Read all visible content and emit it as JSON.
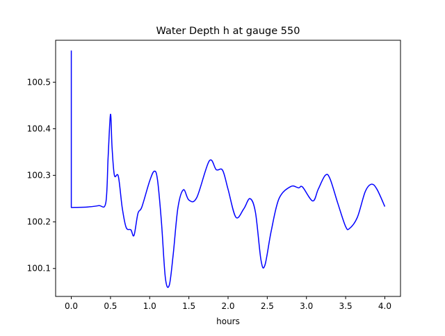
{
  "chart_data": {
    "type": "line",
    "title": "Water Depth h at gauge 550",
    "xlabel": "hours",
    "ylabel": "",
    "xlim": [
      -0.2,
      4.2
    ],
    "ylim": [
      100.04,
      100.59
    ],
    "xticks": [
      0.0,
      0.5,
      1.0,
      1.5,
      2.0,
      2.5,
      3.0,
      3.5,
      4.0
    ],
    "xtick_labels": [
      "0.0",
      "0.5",
      "1.0",
      "1.5",
      "2.0",
      "2.5",
      "3.0",
      "3.5",
      "4.0"
    ],
    "yticks": [
      100.1,
      100.2,
      100.3,
      100.4,
      100.5
    ],
    "ytick_labels": [
      "100.1",
      "100.2",
      "100.3",
      "100.4",
      "100.5"
    ],
    "grid": false,
    "line_color": "#0000ff",
    "series": [
      {
        "x": [
          0.0,
          0.0,
          0.0,
          0.2,
          0.35,
          0.44,
          0.47,
          0.5,
          0.52,
          0.55,
          0.6,
          0.65,
          0.7,
          0.76,
          0.8,
          0.85,
          0.9,
          1.0,
          1.06,
          1.1,
          1.15,
          1.2,
          1.25,
          1.3,
          1.36,
          1.43,
          1.5,
          1.6,
          1.76,
          1.85,
          1.93,
          2.0,
          2.1,
          2.2,
          2.28,
          2.35,
          2.42,
          2.47,
          2.55,
          2.65,
          2.8,
          2.9,
          2.95,
          3.08,
          3.15,
          3.24,
          3.3,
          3.4,
          3.5,
          3.55,
          3.65,
          3.75,
          3.83,
          3.9,
          4.0
        ],
        "y": [
          100.568,
          100.568,
          100.231,
          100.232,
          100.235,
          100.241,
          100.34,
          100.431,
          100.36,
          100.3,
          100.298,
          100.23,
          100.188,
          100.183,
          100.171,
          100.218,
          100.232,
          100.288,
          100.309,
          100.29,
          100.2,
          100.08,
          100.064,
          100.13,
          100.23,
          100.269,
          100.247,
          100.252,
          100.331,
          100.312,
          100.311,
          100.27,
          100.21,
          100.228,
          100.25,
          100.22,
          100.118,
          100.107,
          100.18,
          100.25,
          100.276,
          100.273,
          100.275,
          100.245,
          100.27,
          100.3,
          100.293,
          100.24,
          100.19,
          100.186,
          100.21,
          100.265,
          100.281,
          100.27,
          100.233
        ]
      }
    ]
  }
}
